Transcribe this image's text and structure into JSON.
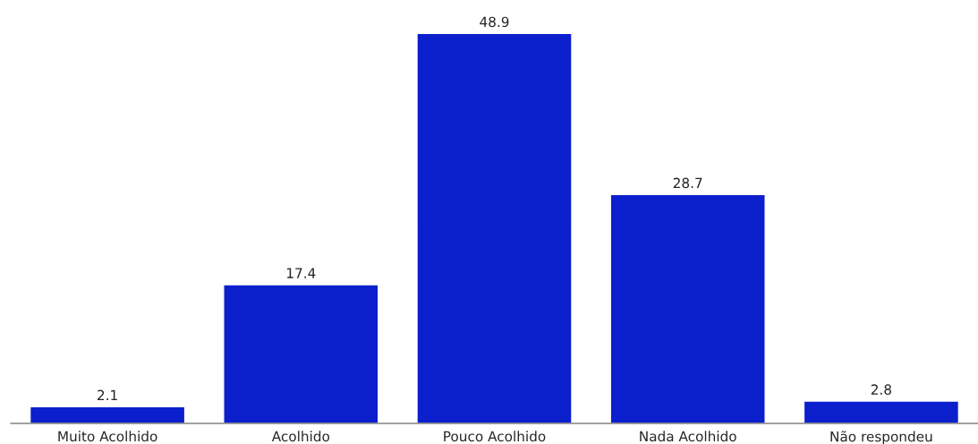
{
  "chart_data": {
    "type": "bar",
    "categories": [
      "Muito Acolhido",
      "Acolhido",
      "Pouco Acolhido",
      "Nada Acolhido",
      "Não respondeu"
    ],
    "values": [
      2.1,
      17.4,
      48.9,
      28.7,
      2.8
    ],
    "color": "#0c1fcc",
    "data_labels": true,
    "grid": false,
    "legend": false
  }
}
